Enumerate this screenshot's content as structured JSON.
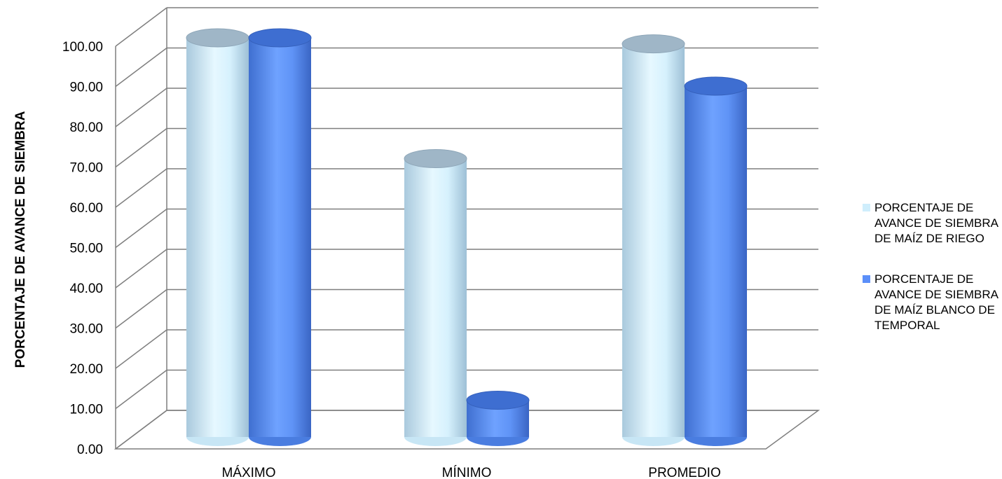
{
  "chart_data": {
    "type": "bar",
    "categories": [
      "MÁXIMO",
      "MÍNIMO",
      "PROMEDIO"
    ],
    "series": [
      {
        "name": "PORCENTAJE DE AVANCE DE SIEMBRA DE MAÍZ DE RIEGO",
        "values": [
          100.0,
          70.0,
          98.5
        ],
        "color": "#cfeefc"
      },
      {
        "name": "PORCENTAJE DE AVANCE DE SIEMBRA DE MAÍZ BLANCO DE TEMPORAL",
        "values": [
          100.0,
          10.0,
          88.0
        ],
        "color": "#5b8ff9"
      }
    ],
    "title": "",
    "xlabel": "",
    "ylabel": "PORCENTAJE DE AVANCE DE SIEMBRA",
    "ylim": [
      0,
      100
    ],
    "yticks": [
      "0.00",
      "10.00",
      "20.00",
      "30.00",
      "40.00",
      "50.00",
      "60.00",
      "70.00",
      "80.00",
      "90.00",
      "100.00"
    ],
    "grid": true,
    "legend_position": "right",
    "style": "3d-cylinder"
  }
}
